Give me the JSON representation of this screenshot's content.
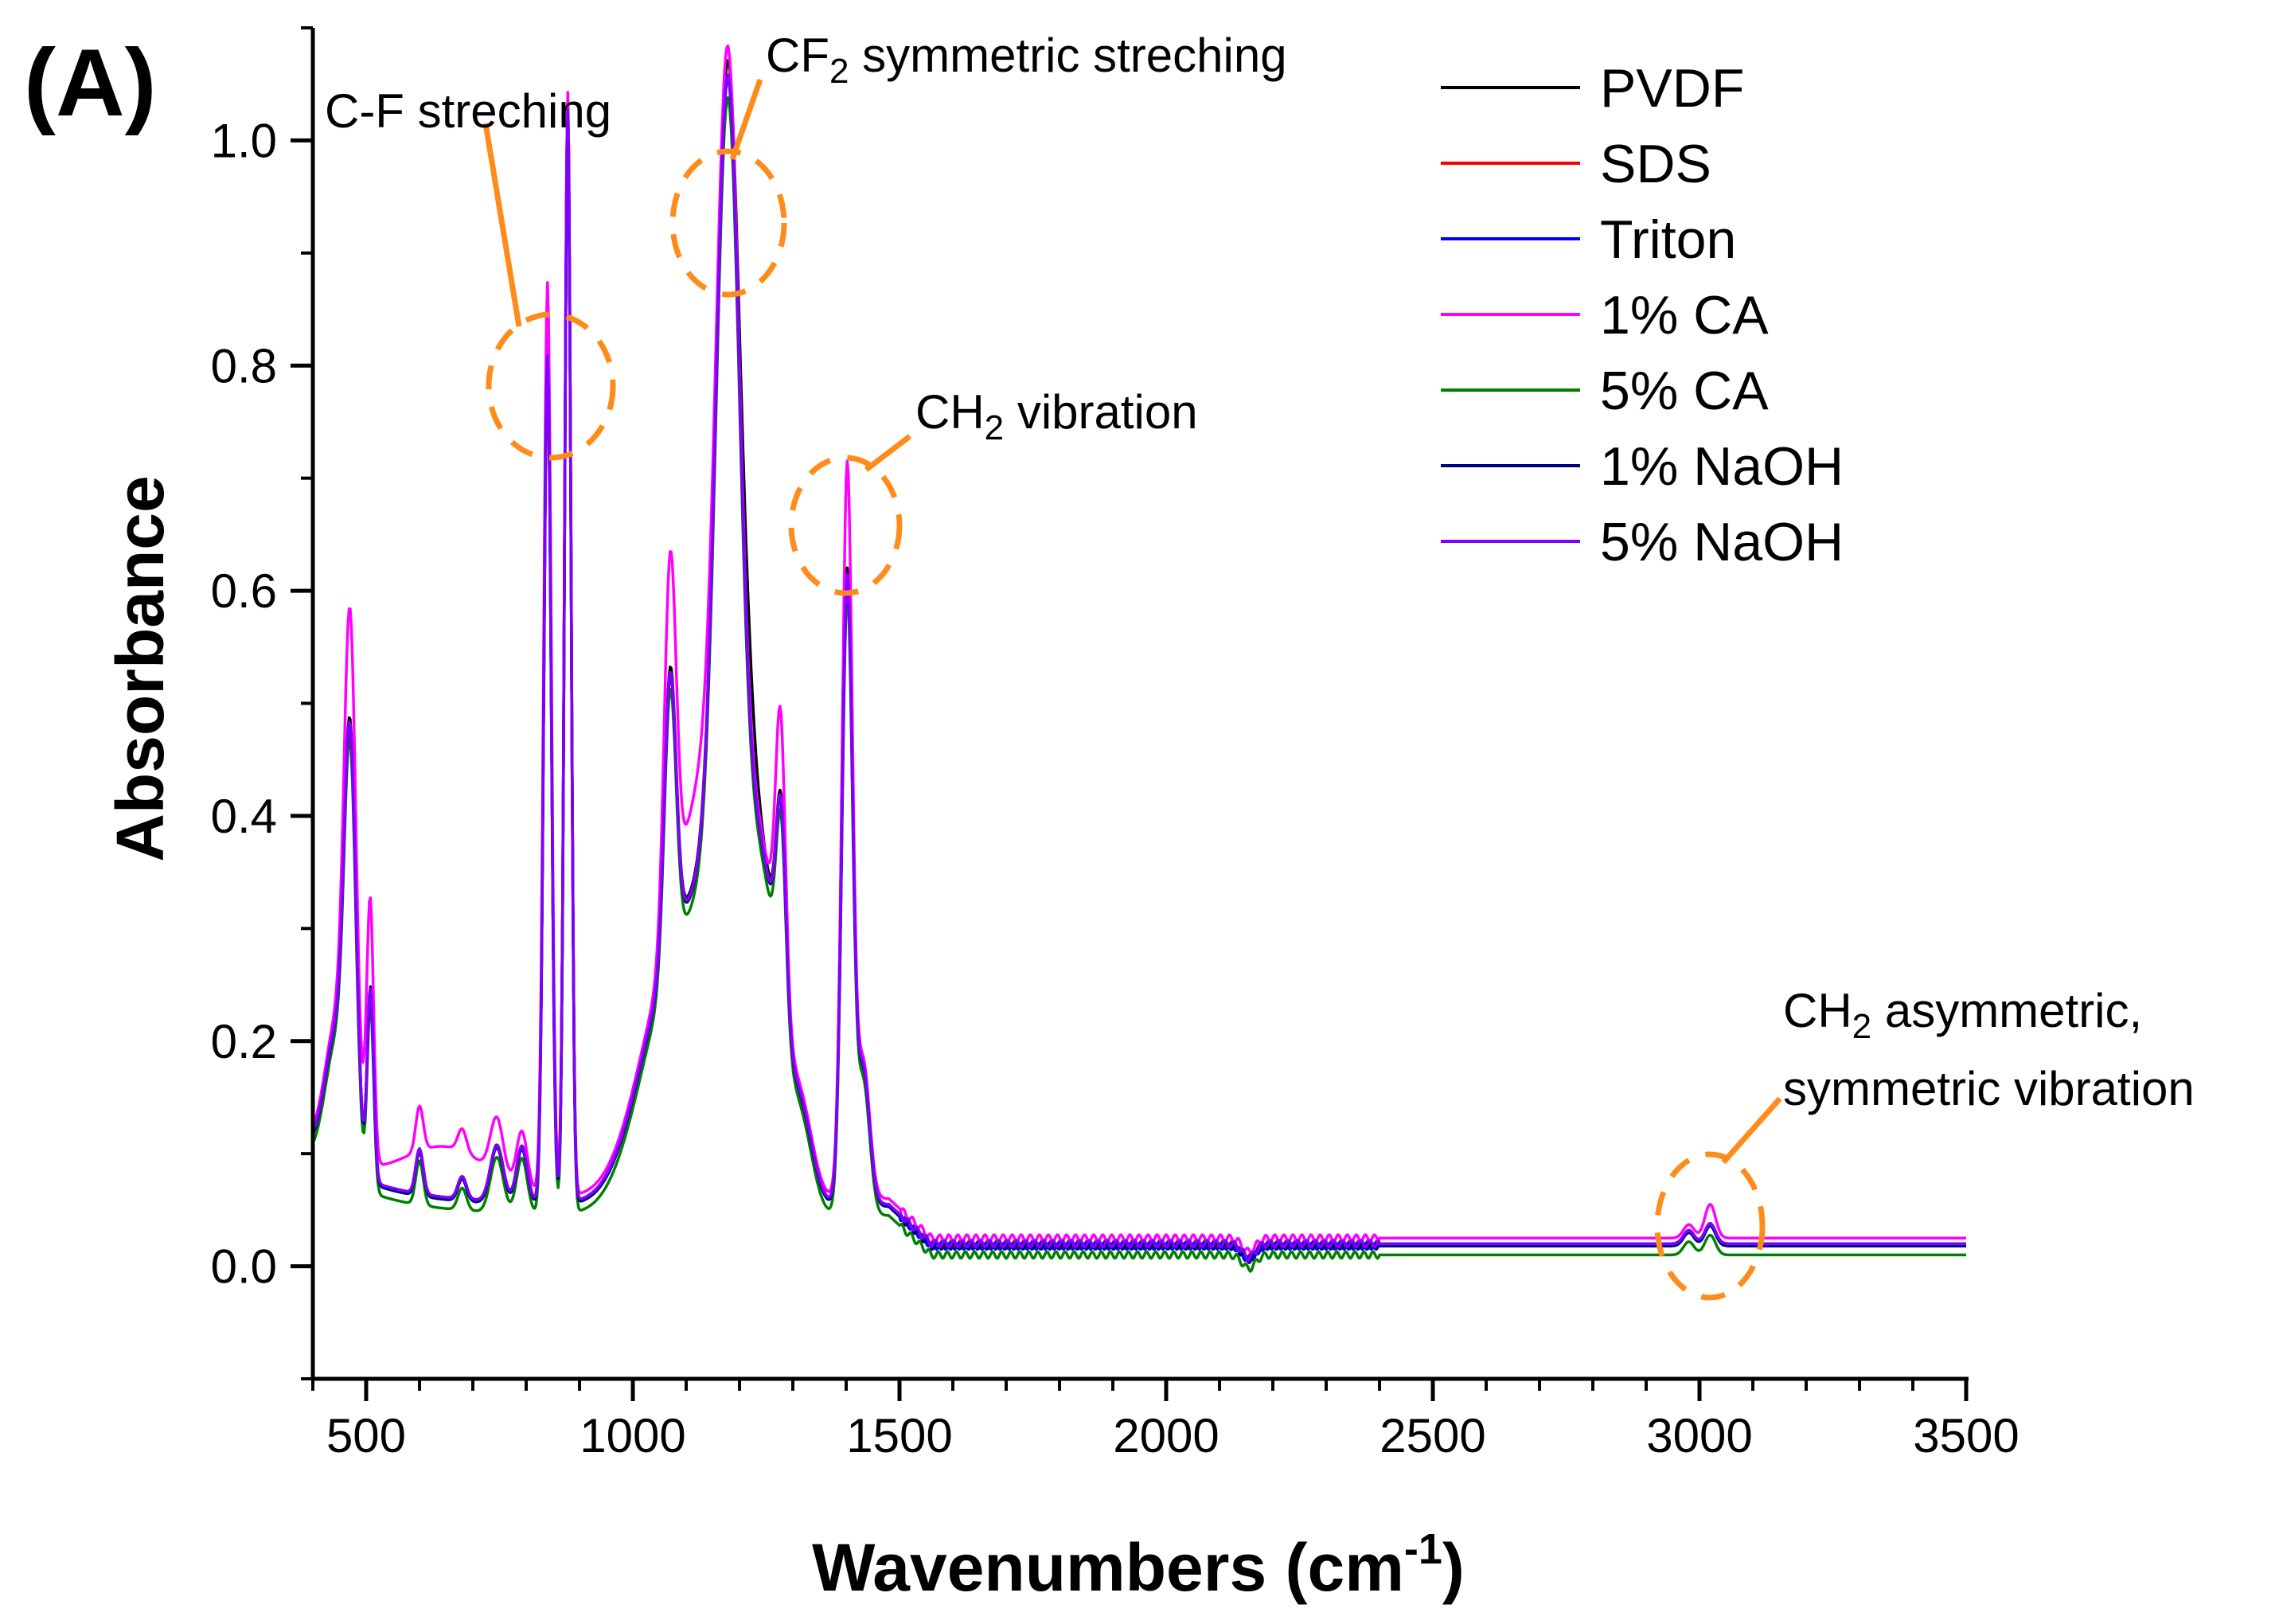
{
  "chart_data": {
    "type": "line",
    "panel_label": "(A)",
    "title": "",
    "xlabel": "Wavenumbers (cm",
    "xlabel_sup": "-1",
    "xlabel_end": ")",
    "ylabel": "Absorbance",
    "xlim": [
      400,
      3500
    ],
    "ylim": [
      -0.1,
      1.1
    ],
    "xticks": [
      500,
      1000,
      1500,
      2000,
      2500,
      3000,
      3500
    ],
    "yticks": [
      0.0,
      0.2,
      0.4,
      0.6,
      0.8,
      1.0
    ],
    "ytick_labels": [
      "0.0",
      "0.2",
      "0.4",
      "0.6",
      "0.8",
      "1.0"
    ],
    "legend_position": "top-right",
    "grid": false,
    "series": [
      {
        "name": "PVDF",
        "color": "#000000",
        "base": 0.02,
        "scale": 1.0,
        "extras": [
          {
            "x": 1215,
            "h": 0.06,
            "w": 15
          }
        ]
      },
      {
        "name": "SDS",
        "color": "#ff0000",
        "base": 0.02,
        "scale": 0.99,
        "extras": []
      },
      {
        "name": "Triton",
        "color": "#0000ff",
        "base": 0.018,
        "scale": 0.99,
        "extras": []
      },
      {
        "name": "1% CA",
        "color": "#ff00ff",
        "base": 0.025,
        "scale": 1.0,
        "extras": [
          {
            "x": 470,
            "h": 0.09,
            "w": 12
          },
          {
            "x": 505,
            "h": 0.07,
            "w": 8
          },
          {
            "x": 840,
            "h": 0.05,
            "w": 8
          },
          {
            "x": 1070,
            "h": 0.08,
            "w": 12
          },
          {
            "x": 1275,
            "h": 0.07,
            "w": 9
          },
          {
            "x": 1402,
            "h": 0.09,
            "w": 8
          },
          {
            "x": 650,
            "h": 0.04,
            "w": 80
          },
          {
            "x": 1120,
            "h": 0.07,
            "w": 30
          },
          {
            "x": 3020,
            "h": 0.012,
            "w": 10
          }
        ]
      },
      {
        "name": "5% CA",
        "color": "#008000",
        "base": 0.01,
        "scale": 0.98,
        "extras": []
      },
      {
        "name": "1% NaOH",
        "color": "#000080",
        "base": 0.018,
        "scale": 0.99,
        "extras": []
      },
      {
        "name": "5% NaOH",
        "color": "#8000ff",
        "base": 0.02,
        "scale": 0.99,
        "extras": []
      }
    ],
    "peaks": [
      {
        "x": 445,
        "h": 0.12,
        "w": 22
      },
      {
        "x": 470,
        "h": 0.34,
        "w": 11
      },
      {
        "x": 508,
        "h": 0.17,
        "w": 6
      },
      {
        "x": 600,
        "h": 0.04,
        "w": 7
      },
      {
        "x": 680,
        "h": 0.02,
        "w": 8
      },
      {
        "x": 745,
        "h": 0.05,
        "w": 12
      },
      {
        "x": 792,
        "h": 0.05,
        "w": 10
      },
      {
        "x": 840,
        "h": 0.76,
        "w": 7
      },
      {
        "x": 878,
        "h": 0.98,
        "w": 6
      },
      {
        "x": 1070,
        "h": 0.25,
        "w": 11
      },
      {
        "x": 1070,
        "h": 0.19,
        "w": 60
      },
      {
        "x": 1150,
        "h": 0.18,
        "w": 45
      },
      {
        "x": 1178,
        "h": 0.74,
        "w": 22
      },
      {
        "x": 1240,
        "h": 0.29,
        "w": 40
      },
      {
        "x": 1278,
        "h": 0.17,
        "w": 9
      },
      {
        "x": 1320,
        "h": 0.05,
        "w": 20
      },
      {
        "x": 1402,
        "h": 0.56,
        "w": 10
      },
      {
        "x": 1432,
        "h": 0.12,
        "w": 12
      },
      {
        "x": 2980,
        "h": 0.012,
        "w": 10
      },
      {
        "x": 3020,
        "h": 0.018,
        "w": 10
      }
    ],
    "annotations": [
      {
        "text": "C-F streching",
        "sub": "",
        "text2": ""
      },
      {
        "text": "CF",
        "sub": "2",
        "text2": " symmetric streching"
      },
      {
        "text": "CH",
        "sub": "2",
        "text2": " vibration"
      },
      {
        "text": "CH",
        "sub": "2",
        "text2": " asymmetric,"
      },
      {
        "text": "symmetric vibration",
        "sub": "",
        "text2": ""
      }
    ],
    "annotation_color": "#ff8c1a"
  }
}
